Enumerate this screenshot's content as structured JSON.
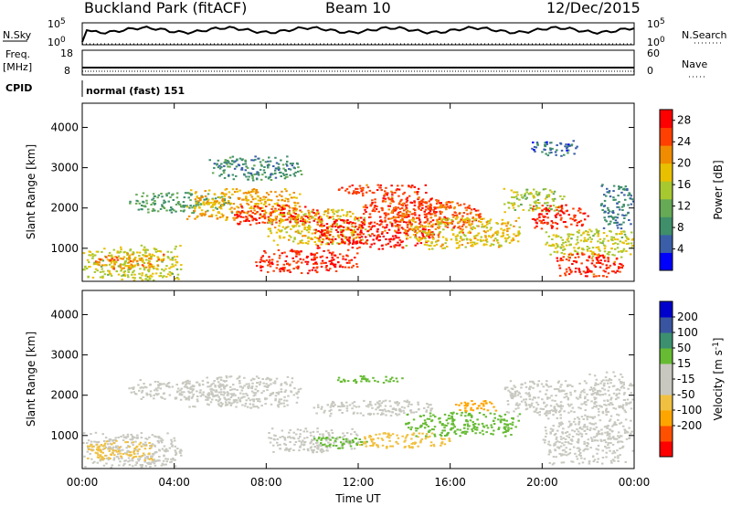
{
  "header": {
    "station": "Buckland Park (fitACF)",
    "beam": "Beam 10",
    "date": "12/Dec/2015"
  },
  "side_labels": {
    "nsky": "N.Sky",
    "freq": "Freq.",
    "mhz": "[MHz]",
    "cpid": "CPID",
    "nsearch": "N.Search",
    "nave": "Nave"
  },
  "ticks": {
    "nsky_left": [
      "10^5",
      "10^0"
    ],
    "nsky_right": [
      "10^5",
      "10^0"
    ],
    "freq_left": [
      "18",
      "8"
    ],
    "nave_right": [
      "60",
      "0"
    ]
  },
  "cpid_text": "normal (fast) 151",
  "colors": {
    "power": [
      "#0000ff",
      "#3a5fa8",
      "#3f8f6a",
      "#66aa55",
      "#a8c830",
      "#e8c000",
      "#f08c00",
      "#ff4000",
      "#ff0000"
    ],
    "velocity": [
      "#ff0000",
      "#ff5000",
      "#ffa500",
      "#f0c040",
      "#c8c8c0",
      "#c8c8c0",
      "#66bb33",
      "#3c9070",
      "#3a55a0",
      "#0000cc"
    ]
  },
  "chart_data": [
    {
      "type": "heatmap",
      "name": "power",
      "ylabel": "Slant Range [km]",
      "xlabel": "",
      "xlim": [
        "00:00",
        "24:00"
      ],
      "ylim": [
        180,
        4600
      ],
      "xticks": [
        "00:00",
        "04:00",
        "08:00",
        "12:00",
        "16:00",
        "20:00",
        "00:00"
      ],
      "yticks": [
        1000,
        2000,
        3000,
        4000
      ],
      "colorbar": {
        "label": "Power [dB]",
        "ticks": [
          "4",
          "8",
          "12",
          "16",
          "20",
          "24",
          "28"
        ],
        "range": [
          0,
          30
        ]
      },
      "regions": [
        {
          "t": [
            0.0,
            4.3
          ],
          "r": [
            180,
            1100
          ],
          "level": 16
        },
        {
          "t": [
            0.5,
            3.5
          ],
          "r": [
            500,
            900
          ],
          "level": 22
        },
        {
          "t": [
            2.0,
            6.5
          ],
          "r": [
            1900,
            2400
          ],
          "level": 10
        },
        {
          "t": [
            4.5,
            9.5
          ],
          "r": [
            1700,
            2500
          ],
          "level": 20
        },
        {
          "t": [
            6.5,
            10.5
          ],
          "r": [
            1600,
            2100
          ],
          "level": 27
        },
        {
          "t": [
            5.5,
            9.5
          ],
          "r": [
            2700,
            3300
          ],
          "level": 8
        },
        {
          "t": [
            8.0,
            12.5
          ],
          "r": [
            1100,
            2000
          ],
          "level": 18
        },
        {
          "t": [
            7.5,
            12.0
          ],
          "r": [
            400,
            1000
          ],
          "level": 27
        },
        {
          "t": [
            10.0,
            15.5
          ],
          "r": [
            1000,
            1800
          ],
          "level": 28
        },
        {
          "t": [
            11.0,
            15.0
          ],
          "r": [
            2300,
            2600
          ],
          "level": 26
        },
        {
          "t": [
            12.0,
            16.0
          ],
          "r": [
            1800,
            2300
          ],
          "level": 26
        },
        {
          "t": [
            13.0,
            17.5
          ],
          "r": [
            1400,
            2200
          ],
          "level": 24
        },
        {
          "t": [
            14.0,
            19.0
          ],
          "r": [
            1000,
            1800
          ],
          "level": 18
        },
        {
          "t": [
            18.3,
            21.0
          ],
          "r": [
            1900,
            2500
          ],
          "level": 15
        },
        {
          "t": [
            19.5,
            22.0
          ],
          "r": [
            1500,
            2100
          ],
          "level": 27
        },
        {
          "t": [
            20.0,
            24.0
          ],
          "r": [
            800,
            1500
          ],
          "level": 16
        },
        {
          "t": [
            20.5,
            23.5
          ],
          "r": [
            300,
            900
          ],
          "level": 26
        },
        {
          "t": [
            22.5,
            24.0
          ],
          "r": [
            1500,
            2600
          ],
          "level": 7
        },
        {
          "t": [
            19.5,
            21.5
          ],
          "r": [
            3300,
            3700
          ],
          "level": 6
        }
      ]
    },
    {
      "type": "heatmap",
      "name": "velocity",
      "ylabel": "Slant Range [km]",
      "xlabel": "Time UT",
      "xlim": [
        "00:00",
        "24:00"
      ],
      "ylim": [
        180,
        4600
      ],
      "xticks": [
        "00:00",
        "04:00",
        "08:00",
        "12:00",
        "16:00",
        "20:00",
        "00:00"
      ],
      "yticks": [
        1000,
        2000,
        3000,
        4000
      ],
      "colorbar": {
        "label": "Velocity [m s^-1]",
        "ticks": [
          "200",
          "100",
          "50",
          "15",
          "-15",
          "-50",
          "-100",
          "-200"
        ],
        "range": [
          -250,
          250
        ]
      },
      "regions": [
        {
          "t": [
            0.0,
            4.3
          ],
          "r": [
            180,
            1100
          ],
          "level": 0
        },
        {
          "t": [
            2.0,
            6.5
          ],
          "r": [
            1900,
            2400
          ],
          "level": 0
        },
        {
          "t": [
            4.5,
            9.5
          ],
          "r": [
            1700,
            2500
          ],
          "level": 0
        },
        {
          "t": [
            8.0,
            12.0
          ],
          "r": [
            600,
            1200
          ],
          "level": 0
        },
        {
          "t": [
            10.0,
            12.5
          ],
          "r": [
            700,
            1000
          ],
          "level": 30
        },
        {
          "t": [
            11.0,
            14.0
          ],
          "r": [
            2300,
            2500
          ],
          "level": 40
        },
        {
          "t": [
            10.0,
            15.5
          ],
          "r": [
            1500,
            1900
          ],
          "level": 0
        },
        {
          "t": [
            12.0,
            16.0
          ],
          "r": [
            700,
            1100
          ],
          "level": -40
        },
        {
          "t": [
            14.0,
            19.0
          ],
          "r": [
            1000,
            1600
          ],
          "level": 20
        },
        {
          "t": [
            16.0,
            18.0
          ],
          "r": [
            1600,
            1900
          ],
          "level": -60
        },
        {
          "t": [
            18.3,
            22.0
          ],
          "r": [
            1500,
            2400
          ],
          "level": 0
        },
        {
          "t": [
            20.0,
            24.0
          ],
          "r": [
            300,
            1500
          ],
          "level": 0
        },
        {
          "t": [
            22.0,
            24.0
          ],
          "r": [
            1500,
            2600
          ],
          "level": 0
        },
        {
          "t": [
            0.0,
            3.0
          ],
          "r": [
            400,
            900
          ],
          "level": -30
        }
      ]
    }
  ]
}
